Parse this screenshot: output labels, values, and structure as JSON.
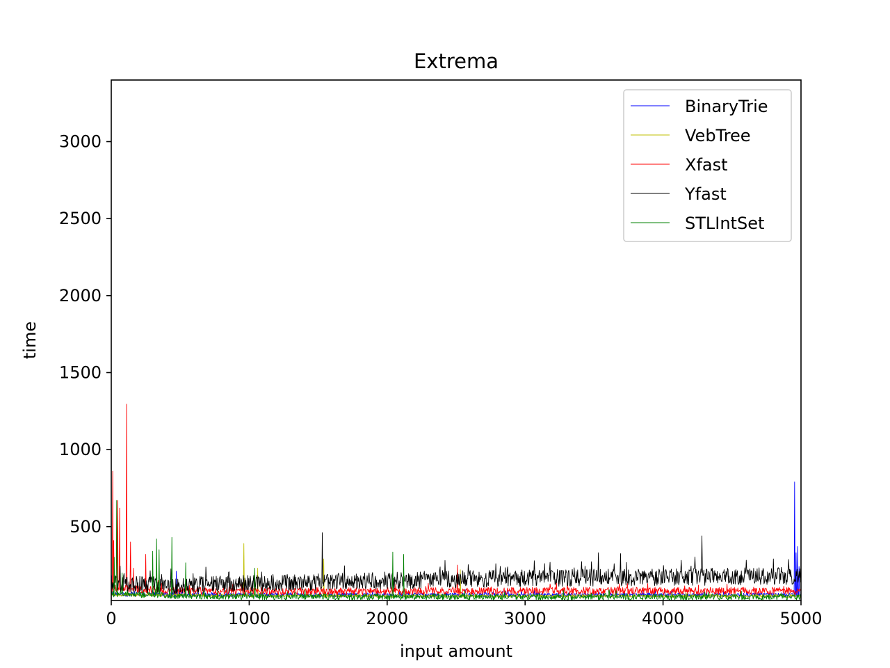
{
  "chart_data": {
    "type": "line",
    "title": "Extrema",
    "xlabel": "input amount",
    "ylabel": "time",
    "xlim": [
      0,
      5000
    ],
    "ylim": [
      20,
      3400
    ],
    "xticks": [
      0,
      1000,
      2000,
      3000,
      4000,
      5000
    ],
    "yticks": [
      500,
      1000,
      1500,
      2000,
      2500,
      3000
    ],
    "grid": false,
    "legend_position": "top-right",
    "series": [
      {
        "name": "BinaryTrie",
        "color": "#0000ff",
        "baseline": [
          [
            0,
            60
          ],
          [
            1000,
            55
          ],
          [
            2000,
            55
          ],
          [
            3000,
            55
          ],
          [
            4000,
            55
          ],
          [
            5000,
            55
          ]
        ],
        "noise": 18,
        "spikes": [
          [
            4,
            180
          ],
          [
            470,
            210
          ],
          [
            4955,
            790
          ],
          [
            4965,
            330
          ],
          [
            4975,
            370
          ],
          [
            4985,
            240
          ]
        ]
      },
      {
        "name": "VebTree",
        "color": "#bfbf00",
        "baseline": [
          [
            0,
            55
          ],
          [
            1000,
            50
          ],
          [
            2000,
            48
          ],
          [
            3000,
            48
          ],
          [
            4000,
            48
          ],
          [
            5000,
            48
          ]
        ],
        "noise": 12,
        "spikes": [
          [
            960,
            390
          ],
          [
            1040,
            200
          ],
          [
            1060,
            230
          ],
          [
            1540,
            290
          ],
          [
            2530,
            220
          ]
        ]
      },
      {
        "name": "Xfast",
        "color": "#ff0000",
        "baseline": [
          [
            0,
            95
          ],
          [
            500,
            80
          ],
          [
            1000,
            78
          ],
          [
            2000,
            78
          ],
          [
            3000,
            80
          ],
          [
            4000,
            80
          ],
          [
            5000,
            80
          ]
        ],
        "noise": 30,
        "spikes": [
          [
            10,
            860
          ],
          [
            18,
            410
          ],
          [
            45,
            670
          ],
          [
            60,
            620
          ],
          [
            110,
            1295
          ],
          [
            140,
            400
          ],
          [
            160,
            230
          ],
          [
            250,
            320
          ],
          [
            2510,
            250
          ]
        ]
      },
      {
        "name": "Yfast",
        "color": "#000000",
        "baseline": [
          [
            0,
            120
          ],
          [
            500,
            110
          ],
          [
            1000,
            125
          ],
          [
            2000,
            145
          ],
          [
            3000,
            160
          ],
          [
            4000,
            165
          ],
          [
            5000,
            175
          ]
        ],
        "noise": 70,
        "spikes": [
          [
            1530,
            460
          ],
          [
            2420,
            280
          ],
          [
            3530,
            330
          ],
          [
            4280,
            440
          ],
          [
            4800,
            290
          ]
        ]
      },
      {
        "name": "STLIntSet",
        "color": "#008000",
        "baseline": [
          [
            0,
            60
          ],
          [
            500,
            48
          ],
          [
            1000,
            42
          ],
          [
            2000,
            42
          ],
          [
            3000,
            40
          ],
          [
            4000,
            40
          ],
          [
            5000,
            40
          ]
        ],
        "noise": 25,
        "spikes": [
          [
            20,
            300
          ],
          [
            40,
            670
          ],
          [
            80,
            200
          ],
          [
            300,
            340
          ],
          [
            330,
            420
          ],
          [
            345,
            350
          ],
          [
            440,
            430
          ],
          [
            540,
            265
          ],
          [
            1040,
            230
          ],
          [
            2040,
            335
          ],
          [
            2120,
            320
          ]
        ]
      }
    ]
  }
}
